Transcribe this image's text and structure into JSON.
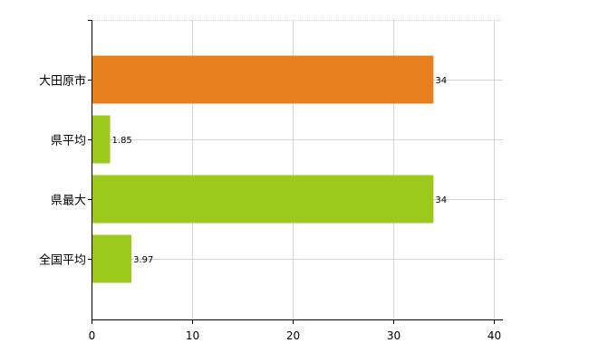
{
  "chart_data": {
    "type": "bar",
    "orientation": "horizontal",
    "categories": [
      "大田原市",
      "県平均",
      "県最大",
      "全国平均"
    ],
    "values": [
      34,
      1.85,
      34,
      3.97
    ],
    "value_labels": [
      "34",
      "1.85",
      "34",
      "3.97"
    ],
    "bar_colors": [
      "#e87f1e",
      "#9dc81c",
      "#9dc81c",
      "#9dc81c"
    ],
    "xlim": [
      0,
      40
    ],
    "xticks": [
      0,
      10,
      20,
      30,
      40
    ],
    "grid": true,
    "title": "",
    "xlabel": "",
    "ylabel": ""
  }
}
